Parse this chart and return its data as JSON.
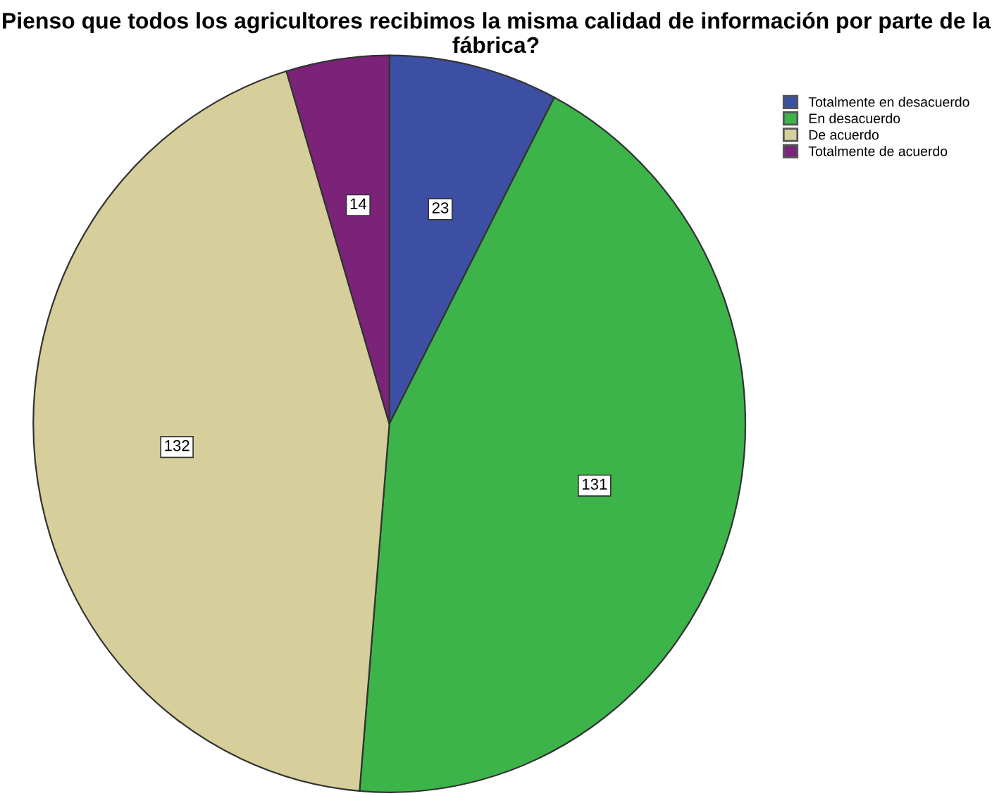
{
  "chart_data": {
    "type": "pie",
    "title": "Pienso que todos los agricultores recibimos la misma calidad de información por parte de la fábrica?",
    "categories": [
      "Totalmente en desacuerdo",
      "En desacuerdo",
      "De acuerdo",
      "Totalmente de acuerdo"
    ],
    "values": [
      23,
      131,
      132,
      14
    ],
    "colors": [
      "#3d4fa3",
      "#3cb44a",
      "#d6cf9c",
      "#7b2378"
    ],
    "data_labels": true,
    "legend": "top right"
  }
}
